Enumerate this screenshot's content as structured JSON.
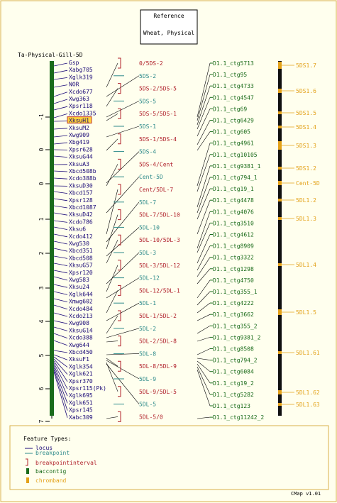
{
  "reference": {
    "label": "Reference",
    "map_title": "Wheat, Physical"
  },
  "map_name": "Ta-Physical-Gill-5D",
  "axis_ticks": [
    "-1",
    "0",
    "0",
    "1",
    "2",
    "3",
    "4",
    "5",
    "6",
    "7"
  ],
  "loci": [
    "Gsp",
    "Xabg705",
    "Xglk319",
    "NOR",
    "Xcdo677",
    "Xwg363",
    "Xpsr118",
    "Xcdo1335",
    "XksuH1",
    "XksuM2",
    "Xwg909",
    "Xbg419",
    "Xpsr628",
    "XksuG44",
    "XksuA3",
    "Xbcd508b",
    "Xcdo388b",
    "XksuD30",
    "Xbcd157",
    "Xpsr128",
    "Xbcd1087",
    "XksuD42",
    "Xcdo786",
    "Xksu6",
    "Xcdo412",
    "Xwg530",
    "Xbcd351",
    "Xbcd508",
    "XksuG57",
    "Xpsr120",
    "Xwg583",
    "Xksu24",
    "Xglk644",
    "Xmwg602",
    "Xcdo484",
    "Xcdo213",
    "Xwg908",
    "XksuG14",
    "Xcdo388",
    "Xwg644",
    "Xbcd450",
    "XksuF1",
    "Xglk354",
    "Xglk621",
    "Xpsr370",
    "Xpsr115(Pk)",
    "Xglk695",
    "Xglk651",
    "Xpsr145",
    "Xabc309"
  ],
  "highlighted_locus": "XksuH1",
  "breakpoints": [
    {
      "label": "0/5DS-2",
      "kind": "interval"
    },
    {
      "label": "5DS-2",
      "kind": "breakpoint"
    },
    {
      "label": "5DS-2/5DS-5",
      "kind": "interval"
    },
    {
      "label": "5DS-5",
      "kind": "breakpoint"
    },
    {
      "label": "5DS-5/5DS-1",
      "kind": "interval"
    },
    {
      "label": "5DS-1",
      "kind": "breakpoint"
    },
    {
      "label": "5DS-1/5DS-4",
      "kind": "interval"
    },
    {
      "label": "5DS-4",
      "kind": "breakpoint"
    },
    {
      "label": "5DS-4/Cent",
      "kind": "interval"
    },
    {
      "label": "Cent-5D",
      "kind": "breakpoint"
    },
    {
      "label": "Cent/5DL-7",
      "kind": "interval"
    },
    {
      "label": "5DL-7",
      "kind": "breakpoint"
    },
    {
      "label": "5DL-7/5DL-10",
      "kind": "interval"
    },
    {
      "label": "5DL-10",
      "kind": "breakpoint"
    },
    {
      "label": "5DL-10/5DL-3",
      "kind": "interval"
    },
    {
      "label": "5DL-3",
      "kind": "breakpoint"
    },
    {
      "label": "5DL-3/5DL-12",
      "kind": "interval"
    },
    {
      "label": "5DL-12",
      "kind": "breakpoint"
    },
    {
      "label": "5DL-12/5DL-1",
      "kind": "interval"
    },
    {
      "label": "5DL-1",
      "kind": "breakpoint"
    },
    {
      "label": "5DL-1/5DL-2",
      "kind": "interval"
    },
    {
      "label": "5DL-2",
      "kind": "breakpoint"
    },
    {
      "label": "5DL-2/5DL-8",
      "kind": "interval"
    },
    {
      "label": "5DL-8",
      "kind": "breakpoint"
    },
    {
      "label": "5DL-8/5DL-9",
      "kind": "interval"
    },
    {
      "label": "5DL-9",
      "kind": "breakpoint"
    },
    {
      "label": "5DL-9/5DL-5",
      "kind": "interval"
    },
    {
      "label": "5DL-5",
      "kind": "breakpoint"
    },
    {
      "label": "5DL-5/0",
      "kind": "interval"
    }
  ],
  "contigs": [
    "D1.1_ctg5713",
    "D1.1_ctg95",
    "D1.1_ctg4733",
    "D1.1_ctg4547",
    "D1.1_ctg69",
    "D1.1_ctg6429",
    "D1.1_ctg605",
    "D1.1_ctg4961",
    "D1.1_ctg10105",
    "D1.1_ctg9381_1",
    "D1.1_ctg794_1",
    "D1.1_ctg19_1",
    "D1.1_ctg4478",
    "D1.1_ctg4076",
    "D1.1_ctg3510",
    "D1.1_ctg4612",
    "D1.1_ctg8909",
    "D1.1_ctg3322",
    "D1.1_ctg1298",
    "D1.1_ctg4750",
    "D1.1_ctg355_1",
    "D1.1_ctg4222",
    "D1.1_ctg3662",
    "D1.1_ctg355_2",
    "D1.1_ctg9381_2",
    "D1.1_ctg8508",
    "D1.1_ctg794_2",
    "D1.1_ctg6084",
    "D1.1_ctg19_2",
    "D1.1_ctg5282",
    "D1.1_ctg123",
    "D1.1_ctg11242_2"
  ],
  "chrombands": [
    "5DS1.7",
    "5DS1.6",
    "5DS1.5",
    "5DS1.4",
    "5DS1.3",
    "5DS1.2",
    "Cent-5D",
    "5DL1.2",
    "5DL1.3",
    "5DL1.4",
    "5DL1.5",
    "5DL1.61",
    "5DL1.62",
    "5DL1.63"
  ],
  "legend": {
    "title": "Feature Types:",
    "items": [
      {
        "label": "locus",
        "type": "locus"
      },
      {
        "label": "breakpoint",
        "type": "breakpoint"
      },
      {
        "label": "breakpointinterval",
        "type": "breakpointinterval"
      },
      {
        "label": "baccontig",
        "type": "baccontig"
      },
      {
        "label": "chromband",
        "type": "chromband"
      }
    ]
  },
  "version": "CMap v1.01",
  "colors": {
    "background": "#ffffee",
    "locus": "#1b0a78",
    "breakpoint": "#2d8a8a",
    "interval": "#b0202a",
    "contig": "#1a6b1a",
    "chromband": "#e3a21a",
    "chromband_dark": "#101010",
    "highlight": "#ffd23a",
    "line": "#000000"
  }
}
